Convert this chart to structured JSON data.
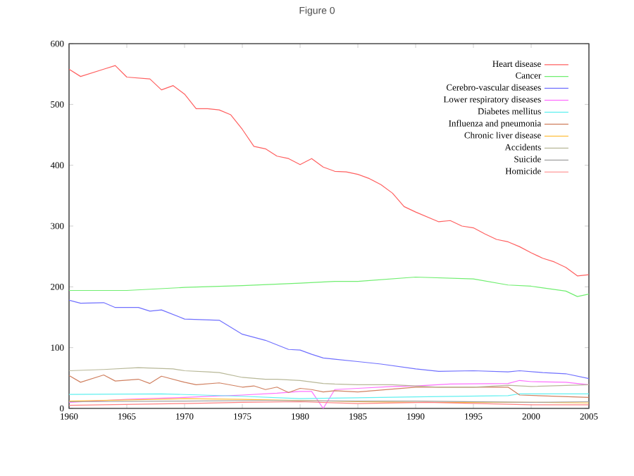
{
  "chart_data": {
    "type": "line",
    "title": "Figure 0",
    "xlim": [
      1960,
      2005
    ],
    "xticks": [
      1960,
      1965,
      1970,
      1975,
      1980,
      1985,
      1990,
      1995,
      2000,
      2005
    ],
    "ylim": [
      0,
      600
    ],
    "yticks": [
      0,
      100,
      200,
      300,
      400,
      500,
      600
    ],
    "legend": "top right",
    "series": [
      {
        "name": "Heart disease",
        "color": "#ff6060",
        "x": [
          1960,
          1961,
          1963,
          1964,
          1965,
          1967,
          1968,
          1969,
          1970,
          1971,
          1972,
          1973,
          1974,
          1975,
          1976,
          1977,
          1978,
          1979,
          1980,
          1981,
          1982,
          1983,
          1984,
          1985,
          1986,
          1987,
          1988,
          1989,
          1990,
          1991,
          1992,
          1993,
          1994,
          1995,
          1996,
          1997,
          1998,
          1999,
          2000,
          2001,
          2002,
          2003,
          2004,
          2005
        ],
        "values": [
          558,
          546,
          558,
          564,
          545,
          542,
          524,
          531,
          517,
          493,
          493,
          491,
          483,
          459,
          431,
          427,
          415,
          411,
          401,
          411,
          397,
          390,
          389,
          385,
          378,
          368,
          354,
          332,
          323,
          315,
          307,
          309,
          300,
          297,
          287,
          278,
          274,
          266,
          256,
          247,
          241,
          232,
          218,
          220
        ]
      },
      {
        "name": "Cancer",
        "color": "#70ee70",
        "x": [
          1960,
          1965,
          1970,
          1975,
          1980,
          1983,
          1985,
          1990,
          1995,
          1998,
          2000,
          2003,
          2004,
          2005
        ],
        "values": [
          194,
          194,
          199,
          202,
          206,
          209,
          209,
          216,
          213,
          203,
          201,
          193,
          184,
          188
        ]
      },
      {
        "name": "Cerebro-vascular diseases",
        "color": "#7070ff",
        "x": [
          1960,
          1961,
          1963,
          1964,
          1966,
          1967,
          1968,
          1970,
          1973,
          1975,
          1977,
          1979,
          1980,
          1981,
          1982,
          1983,
          1985,
          1987,
          1990,
          1992,
          1995,
          1998,
          1999,
          2001,
          2003,
          2005
        ],
        "values": [
          178,
          173,
          174,
          166,
          166,
          160,
          162,
          147,
          145,
          122,
          112,
          97,
          96,
          89,
          83,
          81,
          77,
          73,
          65,
          61,
          62,
          60,
          62,
          59,
          57,
          49
        ]
      },
      {
        "name": "Lower respiratory diseases",
        "color": "#ff70ff",
        "x": [
          1960,
          1965,
          1970,
          1975,
          1978,
          1980,
          1981,
          1982,
          1983,
          1985,
          1988,
          1990,
          1993,
          1998,
          1999,
          2000,
          2003,
          2005
        ],
        "values": [
          10,
          15,
          18,
          22,
          25,
          28,
          28,
          0,
          31,
          33,
          36,
          37,
          40,
          41,
          46,
          44,
          43,
          39
        ]
      },
      {
        "name": "Diabetes mellitus",
        "color": "#60f0f0",
        "x": [
          1960,
          1968,
          1975,
          1980,
          1983,
          1990,
          1998,
          1999,
          2005
        ],
        "values": [
          23,
          24,
          20,
          16,
          17,
          19,
          21,
          24,
          24
        ]
      },
      {
        "name": "Influenza and pneumonia",
        "color": "#d08060",
        "x": [
          1960,
          1961,
          1963,
          1964,
          1966,
          1967,
          1968,
          1970,
          1971,
          1973,
          1975,
          1976,
          1977,
          1978,
          1979,
          1980,
          1981,
          1982,
          1983,
          1985,
          1990,
          1998,
          1999,
          2005
        ],
        "values": [
          54,
          43,
          55,
          45,
          48,
          41,
          53,
          43,
          39,
          42,
          35,
          37,
          31,
          35,
          26,
          33,
          31,
          27,
          29,
          27,
          35,
          35,
          22,
          18
        ]
      },
      {
        "name": "Chronic liver disease",
        "color": "#ffc040",
        "x": [
          1960,
          1970,
          1975,
          1980,
          1985,
          1990,
          2000,
          2005
        ],
        "values": [
          12,
          16,
          15,
          13,
          11,
          10,
          10,
          9
        ]
      },
      {
        "name": "Accidents",
        "color": "#b8b898",
        "x": [
          1960,
          1963,
          1966,
          1969,
          1970,
          1972,
          1973,
          1975,
          1977,
          1978,
          1980,
          1982,
          1983,
          1985,
          1988,
          1990,
          1992,
          1995,
          1998,
          2000,
          2005
        ],
        "values": [
          62,
          64,
          67,
          65,
          62,
          60,
          59,
          51,
          48,
          48,
          46,
          41,
          40,
          39,
          39,
          37,
          35,
          35,
          38,
          36,
          39
        ]
      },
      {
        "name": "Suicide",
        "color": "#a0a0a0",
        "x": [
          1960,
          1970,
          1977,
          1985,
          1990,
          2000,
          2005
        ],
        "values": [
          11,
          12,
          13,
          12,
          12,
          10,
          11
        ]
      },
      {
        "name": "Homicide",
        "color": "#ff8080",
        "x": [
          1960,
          1970,
          1975,
          1980,
          1985,
          1991,
          2000,
          2005
        ],
        "values": [
          5,
          8,
          10,
          11,
          8,
          10,
          6,
          6
        ]
      }
    ]
  }
}
